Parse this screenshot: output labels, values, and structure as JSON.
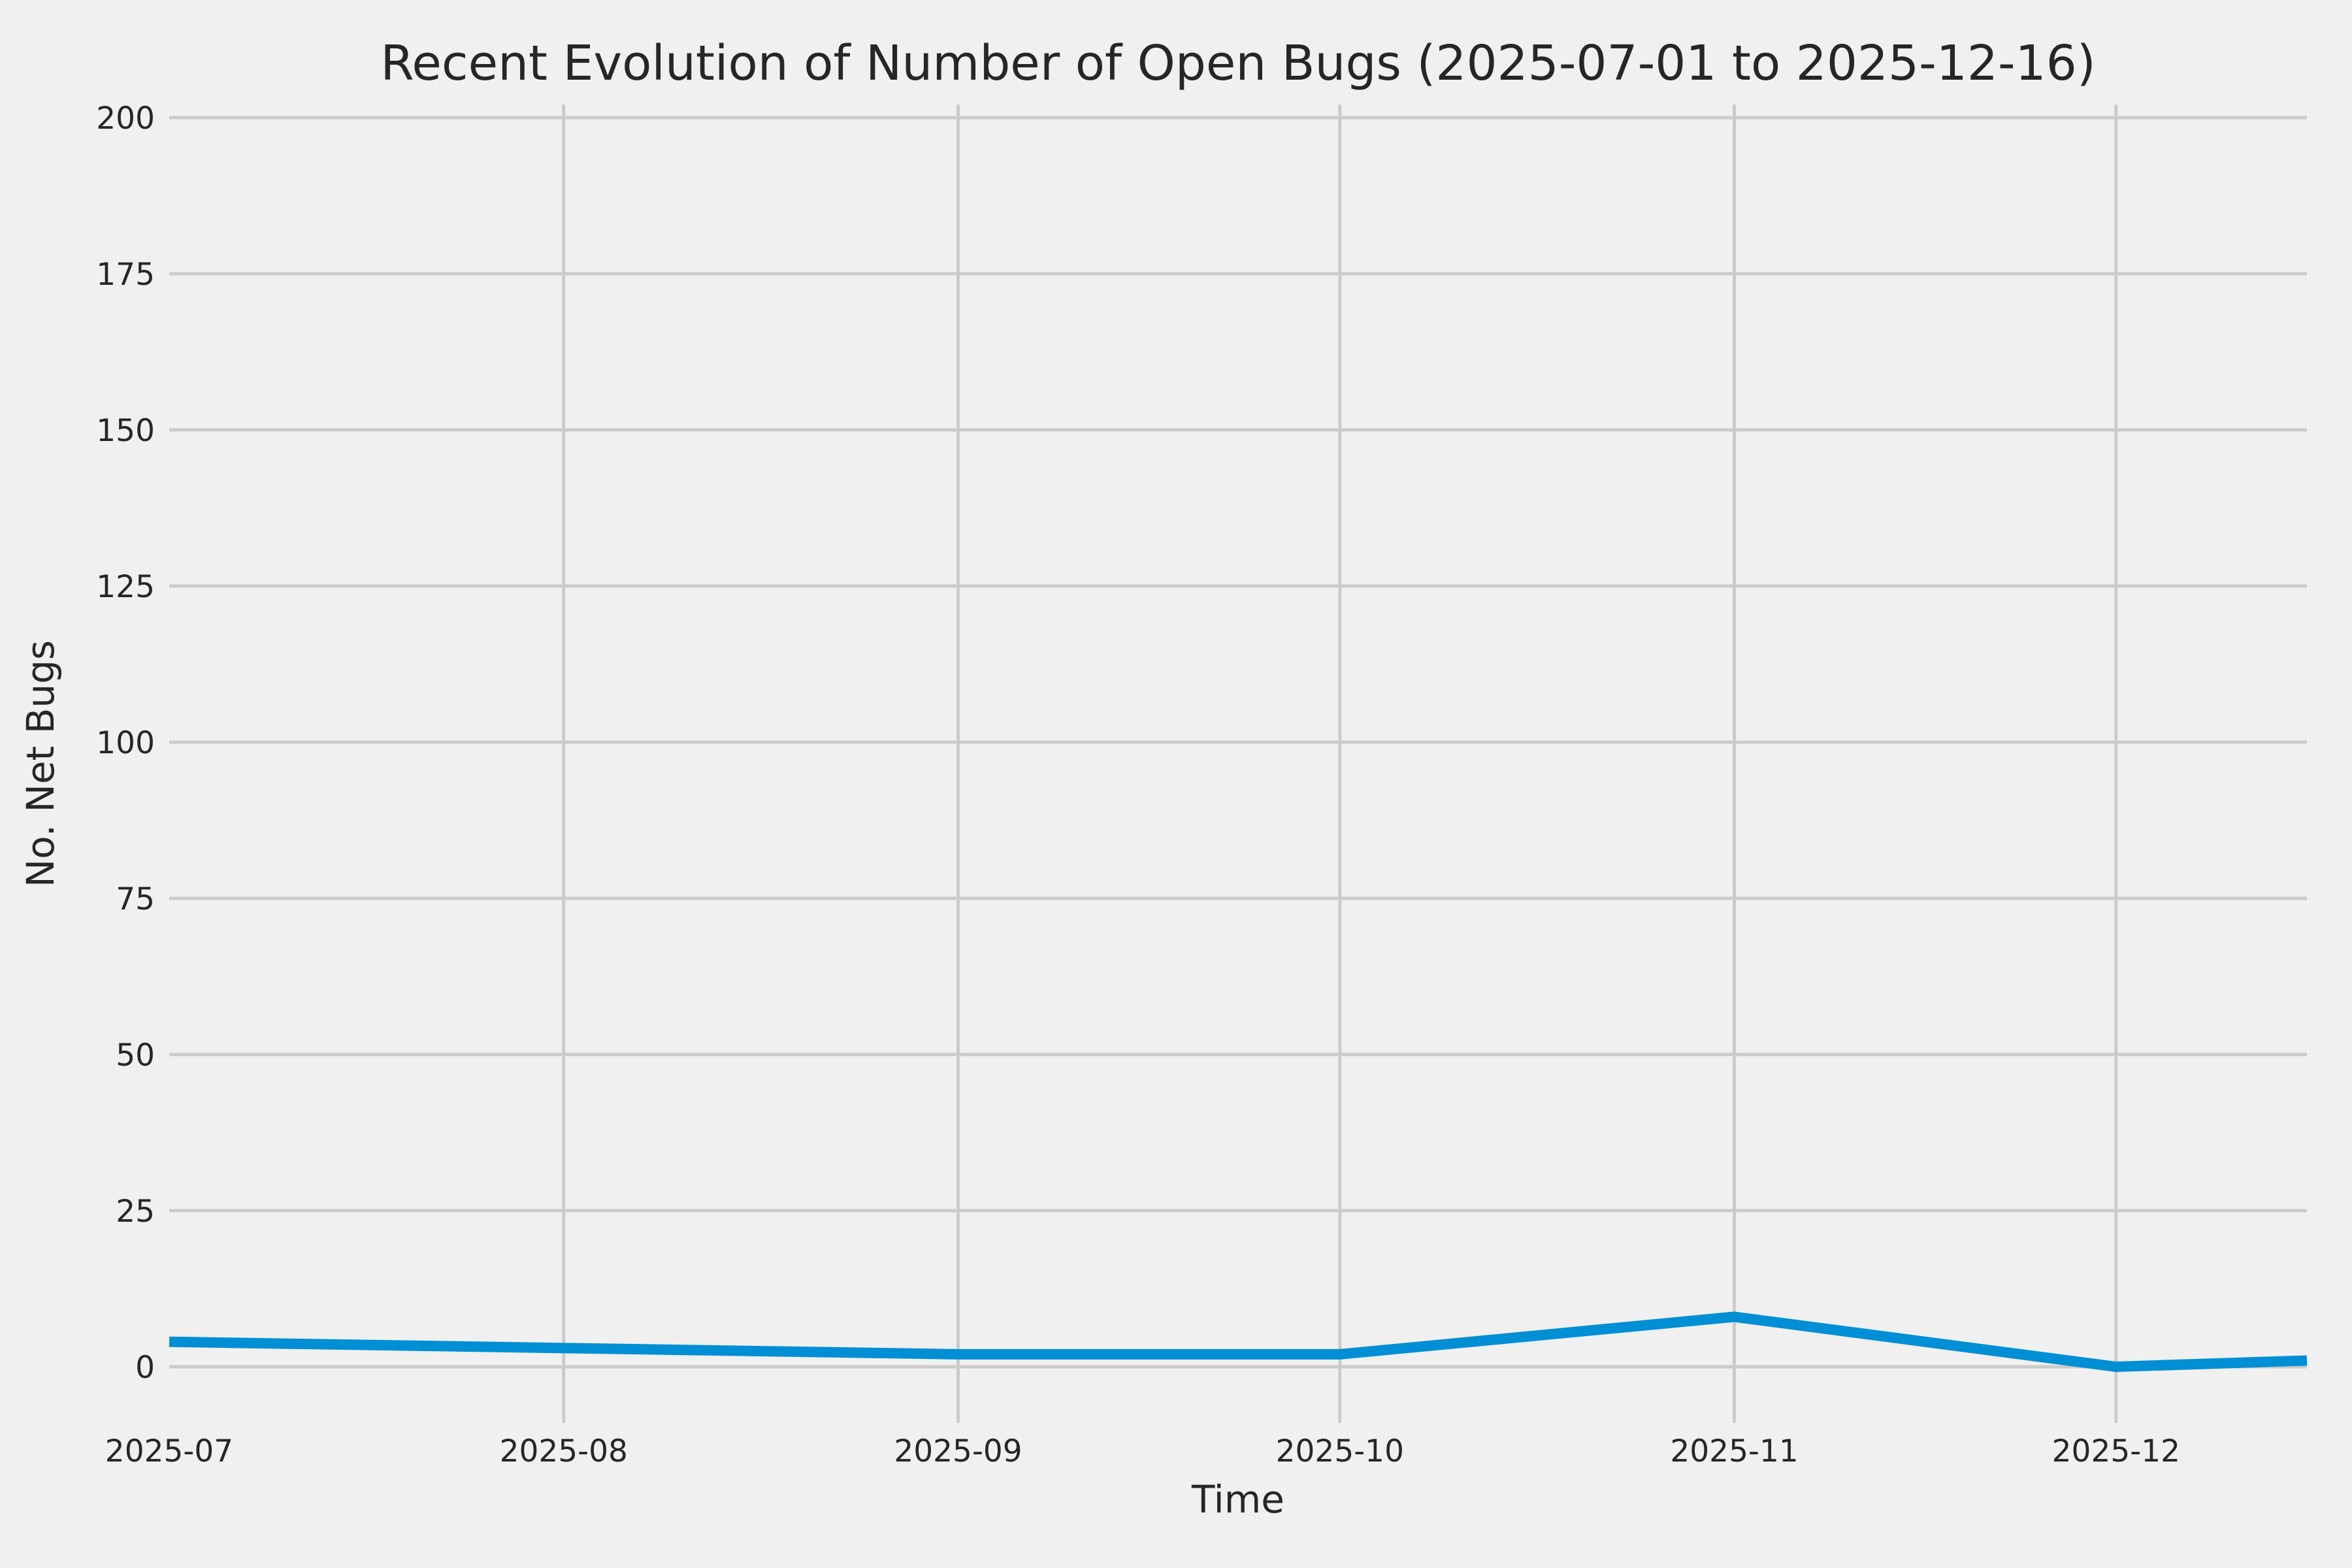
{
  "chart_data": {
    "type": "line",
    "title": "Recent Evolution of Number of Open Bugs (2025-07-01 to 2025-12-16)",
    "xlabel": "Time",
    "ylabel": "No. Net Bugs",
    "x_range": {
      "start": "2025-07-01",
      "end": "2025-12-16",
      "days": 168
    },
    "ylim": [
      -9,
      202
    ],
    "grid": true,
    "legend": "none",
    "background_color": "#f0f0f0",
    "grid_color": "#cbcbcb",
    "line_color": "#008fd5",
    "text_color": "#262626",
    "yticks": [
      0,
      25,
      50,
      75,
      100,
      125,
      150,
      175,
      200
    ],
    "xticks": [
      {
        "label": "2025-07",
        "day": 0,
        "gridline": false
      },
      {
        "label": "2025-08",
        "day": 31,
        "gridline": true
      },
      {
        "label": "2025-09",
        "day": 62,
        "gridline": true
      },
      {
        "label": "2025-10",
        "day": 92,
        "gridline": true
      },
      {
        "label": "2025-11",
        "day": 123,
        "gridline": true
      },
      {
        "label": "2025-12",
        "day": 153,
        "gridline": true
      }
    ],
    "series": [
      {
        "name": "Open Bugs",
        "points": [
          {
            "date": "2025-07-01",
            "day": 0,
            "value": 4
          },
          {
            "date": "2025-08-01",
            "day": 31,
            "value": 3
          },
          {
            "date": "2025-09-01",
            "day": 62,
            "value": 2
          },
          {
            "date": "2025-10-01",
            "day": 92,
            "value": 2
          },
          {
            "date": "2025-11-01",
            "day": 123,
            "value": 8
          },
          {
            "date": "2025-12-01",
            "day": 153,
            "value": 0
          },
          {
            "date": "2025-12-16",
            "day": 168,
            "value": 1
          }
        ]
      }
    ]
  }
}
